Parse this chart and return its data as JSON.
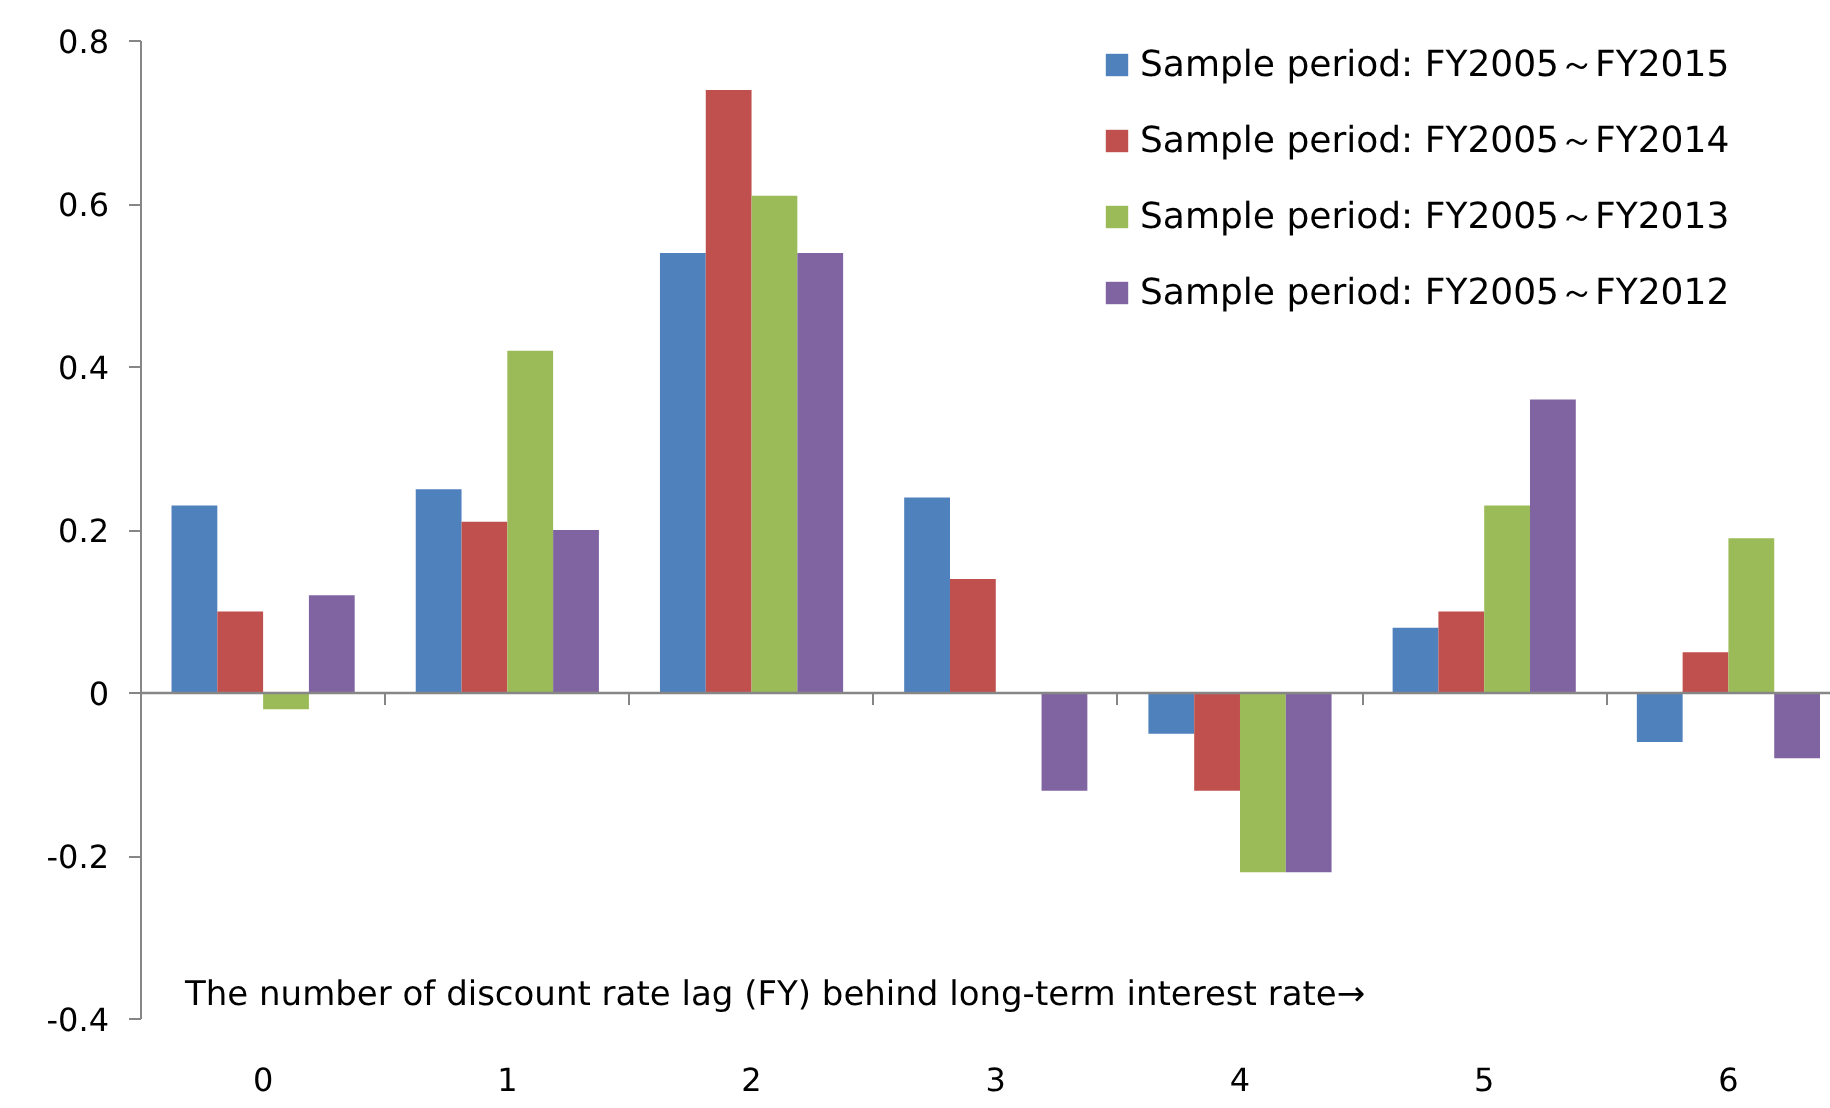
{
  "chart_data": {
    "type": "bar",
    "xlabel": "The number of discount rate lag (FY) behind long-term interest rate→",
    "categories": [
      "0",
      "1",
      "2",
      "3",
      "4",
      "5",
      "6"
    ],
    "series": [
      {
        "name": "Sample period: FY2005～FY2015",
        "color": "#4f81bd",
        "values": [
          0.23,
          0.25,
          0.54,
          0.24,
          -0.05,
          0.08,
          -0.06
        ]
      },
      {
        "name": "Sample period: FY2005～FY2014",
        "color": "#c0504d",
        "values": [
          0.1,
          0.21,
          0.74,
          0.14,
          -0.12,
          0.1,
          0.05
        ]
      },
      {
        "name": "Sample period: FY2005～FY2013",
        "color": "#9bbb59",
        "values": [
          -0.02,
          0.42,
          0.61,
          null,
          -0.22,
          0.23,
          0.19
        ]
      },
      {
        "name": "Sample period: FY2005～FY2012",
        "color": "#8064a2",
        "values": [
          0.12,
          0.2,
          0.54,
          -0.12,
          -0.22,
          0.36,
          -0.08
        ]
      }
    ],
    "ylim": [
      -0.4,
      0.8
    ],
    "yticks": [
      -0.4,
      -0.2,
      0,
      0.2,
      0.4,
      0.6,
      0.8
    ],
    "legend": "top right"
  }
}
